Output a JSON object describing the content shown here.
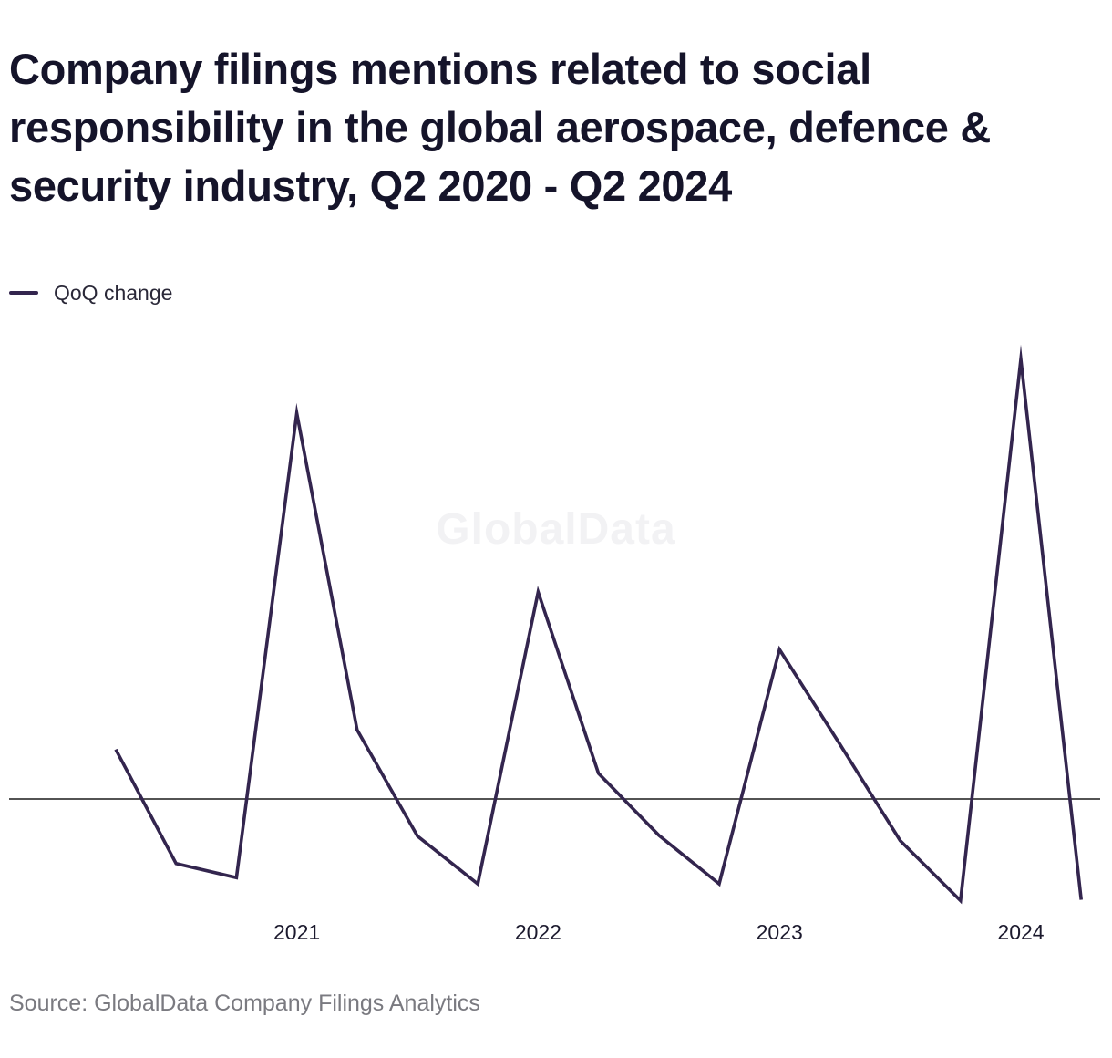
{
  "chart_data": {
    "type": "line",
    "title": "Company filings mentions related to social responsibility in the global aerospace, defence & security industry, Q2 2020 - Q2 2024",
    "series": [
      {
        "name": "QoQ change",
        "color": "#33254e",
        "x": [
          "Q2 2020",
          "Q3 2020",
          "Q4 2020",
          "Q1 2021",
          "Q2 2021",
          "Q3 2021",
          "Q4 2021",
          "Q1 2022",
          "Q2 2022",
          "Q3 2022",
          "Q4 2022",
          "Q1 2023",
          "Q2 2023",
          "Q3 2023",
          "Q4 2023",
          "Q1 2024",
          "Q2 2024"
        ],
        "values": [
          5.6,
          -7.3,
          -8.9,
          43.6,
          7.8,
          -4.2,
          -9.6,
          23.4,
          2.9,
          -4.1,
          -9.6,
          16.9,
          6.2,
          -4.7,
          -11.5,
          49.7,
          -11.4
        ]
      }
    ],
    "x_tick_labels": [
      "2021",
      "2022",
      "2023",
      "2024"
    ],
    "x_tick_positions": [
      "Q1 2021",
      "Q1 2022",
      "Q1 2023",
      "Q1 2024"
    ],
    "ylim": [
      -12,
      50
    ],
    "zero_line": true,
    "grid": false,
    "legend_position": "top-left",
    "xlabel": "",
    "ylabel": ""
  },
  "legend": {
    "label": "QoQ change",
    "color": "#33254e"
  },
  "watermark": "GlobalData",
  "source": "Source: GlobalData Company Filings Analytics"
}
